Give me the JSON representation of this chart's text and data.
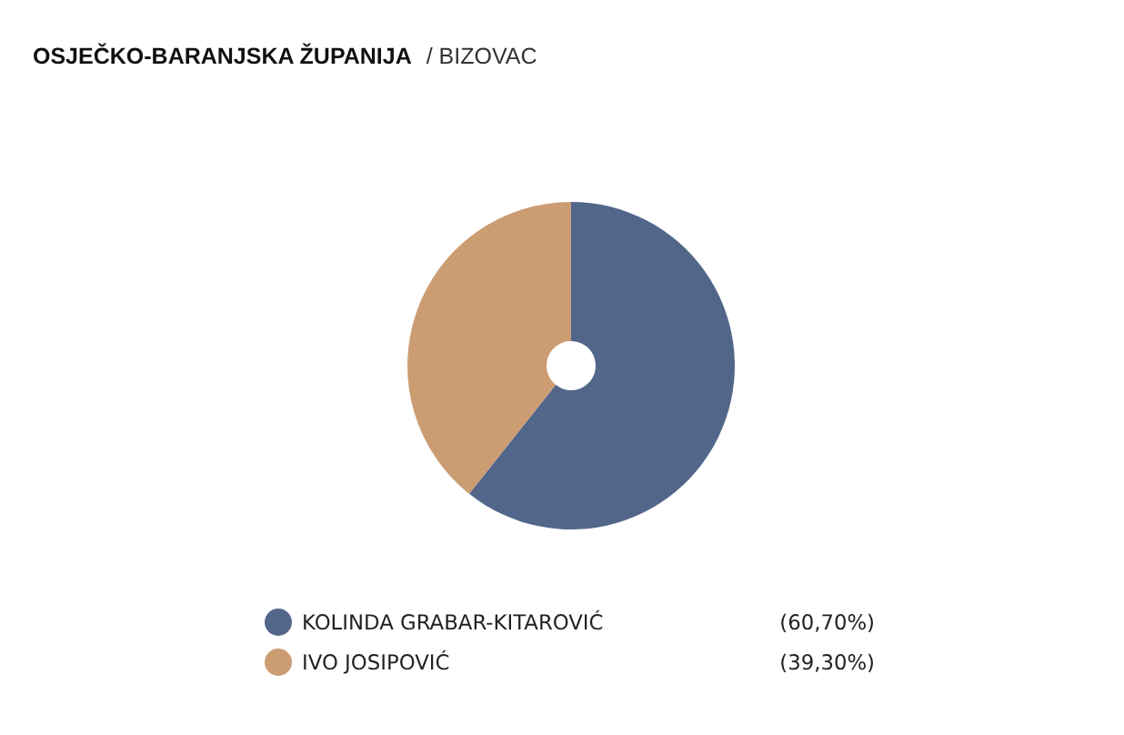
{
  "chart_data": {
    "type": "donut",
    "title": "OSJEČKO-BARANJSKA ŽUPANIJA",
    "subtitle": "/ BIZOVAC",
    "categories": [
      "KOLINDA GRABAR-KITAROVIĆ",
      "IVO JOSIPOVIĆ"
    ],
    "values": [
      60.7,
      39.3
    ],
    "colors": [
      "#52668a",
      "#cc9c73"
    ],
    "value_labels": [
      "(60,70%)",
      "(39,30%)"
    ],
    "legend": "bottom"
  }
}
